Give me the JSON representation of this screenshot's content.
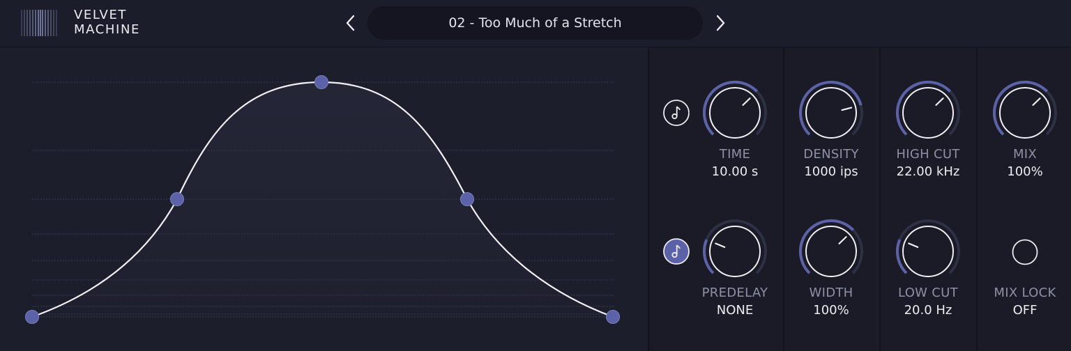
{
  "app": {
    "name_line1": "VELVET",
    "name_line2": "MACHINE"
  },
  "preset": {
    "name": "02 - Too Much of a Stretch"
  },
  "colors": {
    "accent": "#5b62a8",
    "background": "#1c1d2a",
    "panel": "#1a1b27",
    "text": "#ececf2",
    "label": "#8e90a4"
  },
  "controls": {
    "time": {
      "label": "TIME",
      "value": "10.00 s",
      "level": 0.67
    },
    "density": {
      "label": "DENSITY",
      "value": "1000 ips",
      "level": 0.78
    },
    "high_cut": {
      "label": "HIGH CUT",
      "value": "22.00 kHz",
      "level": 0.67
    },
    "mix": {
      "label": "MIX",
      "value": "100%",
      "level": 0.67
    },
    "predelay": {
      "label": "PREDELAY",
      "value": "NONE",
      "level": 0.25
    },
    "width": {
      "label": "WIDTH",
      "value": "100%",
      "level": 0.67
    },
    "low_cut": {
      "label": "LOW CUT",
      "value": "20.0 Hz",
      "level": 0.25
    },
    "mix_lock": {
      "label": "MIX LOCK",
      "value": "OFF"
    }
  },
  "sync": {
    "time_sync_active": false,
    "predelay_sync_active": true
  },
  "envelope": {
    "points_level": [
      0.0,
      0.5,
      1.0,
      0.5,
      0.0
    ]
  }
}
